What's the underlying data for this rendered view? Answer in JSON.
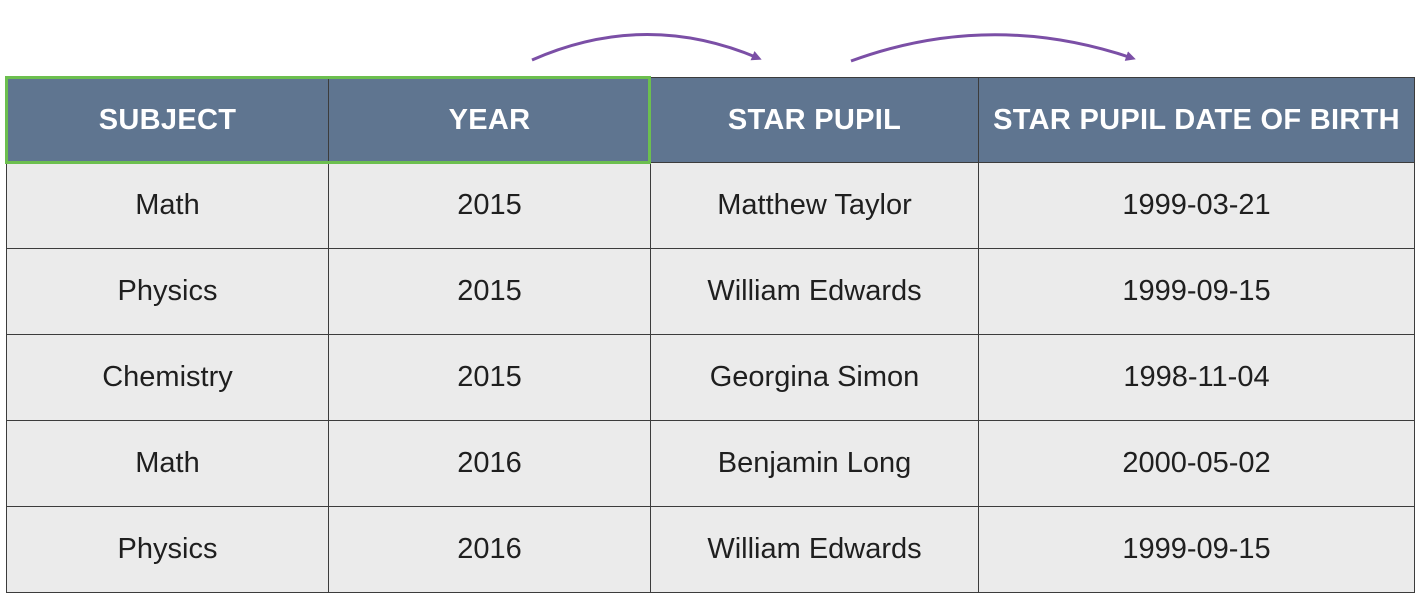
{
  "table": {
    "columns": [
      "SUBJECT",
      "YEAR",
      "STAR PUPIL",
      "STAR PUPIL DATE OF BIRTH"
    ],
    "rows": [
      [
        "Math",
        "2015",
        "Matthew Taylor",
        "1999-03-21"
      ],
      [
        "Physics",
        "2015",
        "William Edwards",
        "1999-09-15"
      ],
      [
        "Chemistry",
        "2015",
        "Georgina Simon",
        "1998-11-04"
      ],
      [
        "Math",
        "2016",
        "Benjamin Long",
        "2000-05-02"
      ],
      [
        "Physics",
        "2016",
        "William Edwards",
        "1999-09-15"
      ]
    ]
  },
  "primary_key_columns": [
    "SUBJECT",
    "YEAR"
  ],
  "dependency_arrows": [
    {
      "from": "YEAR",
      "to": "STAR PUPIL"
    },
    {
      "from": "STAR PUPIL",
      "to": "STAR PUPIL DATE OF BIRTH"
    }
  ],
  "colors": {
    "header_bg": "#5f7590",
    "header_text": "#ffffff",
    "cell_bg": "#ebebeb",
    "cell_text": "#1f1f1f",
    "border": "#3c3c3c",
    "key_highlight": "#6cbf4f",
    "arrow": "#7b4fa6"
  }
}
